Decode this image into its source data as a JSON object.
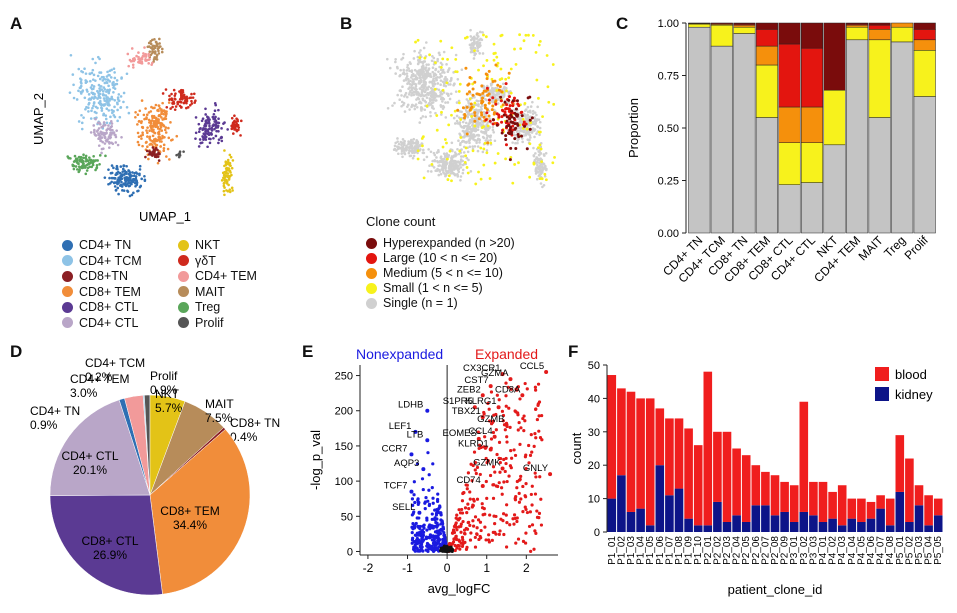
{
  "panel_labels": {
    "a": "A",
    "b": "B",
    "c": "C",
    "d": "D",
    "e": "E",
    "f": "F"
  },
  "panel_a": {
    "xlabel": "UMAP_1",
    "ylabel": "UMAP_2",
    "legend": [
      {
        "label": "CD4+ TN",
        "color": "#2f6fb3"
      },
      {
        "label": "NKT",
        "color": "#e3c317"
      },
      {
        "label": "CD4+ TCM",
        "color": "#8ec3e6"
      },
      {
        "label": "γδT",
        "color": "#cf2a1d"
      },
      {
        "label": "CD8+TN",
        "color": "#8b1f24"
      },
      {
        "label": "CD4+ TEM",
        "color": "#f29a9a"
      },
      {
        "label": "CD8+ TEM",
        "color": "#f18d3a"
      },
      {
        "label": "MAIT",
        "color": "#b78c5a"
      },
      {
        "label": "CD8+ CTL",
        "color": "#5b3a93"
      },
      {
        "label": "Treg",
        "color": "#5aa65a"
      },
      {
        "label": "CD4+ CTL",
        "color": "#b9a6c8"
      },
      {
        "label": "Prolif",
        "color": "#555555"
      }
    ]
  },
  "panel_b": {
    "legend_title": "Clone count",
    "legend": [
      {
        "label": "Hyperexpanded (n >20)",
        "color": "#7a0c0c"
      },
      {
        "label": "Large (10 < n <= 20)",
        "color": "#e3150f"
      },
      {
        "label": "Medium (5 < n <= 10)",
        "color": "#f5900c"
      },
      {
        "label": "Small (1 < n <= 5)",
        "color": "#f7f21c"
      },
      {
        "label": "Single (n = 1)",
        "color": "#d0d0d0"
      }
    ]
  },
  "chart_data": [
    {
      "id": "C",
      "type": "bar",
      "stacked": true,
      "ylabel": "Proportion",
      "ylim": [
        0,
        1
      ],
      "yticks": [
        "0.00",
        "0.25",
        "0.50",
        "0.75",
        "1.00"
      ],
      "categories": [
        "CD4+ TN",
        "CD4+ TCM",
        "CD8+ TN",
        "CD8+ TEM",
        "CD8+ CTL",
        "CD4+ CTL",
        "NKT",
        "CD4+ TEM",
        "MAIT",
        "Treg",
        "Prolif"
      ],
      "series": [
        {
          "name": "Single (n = 1)",
          "color": "#c4c4c4",
          "values": [
            0.98,
            0.89,
            0.95,
            0.55,
            0.23,
            0.24,
            0.42,
            0.92,
            0.55,
            0.91,
            0.65
          ]
        },
        {
          "name": "Small (1 < n <= 5)",
          "color": "#f7f21c",
          "values": [
            0.015,
            0.1,
            0.03,
            0.25,
            0.2,
            0.19,
            0.26,
            0.06,
            0.37,
            0.07,
            0.22
          ]
        },
        {
          "name": "Medium (5 < n <= 10)",
          "color": "#f5900c",
          "values": [
            0.003,
            0.005,
            0.01,
            0.09,
            0.17,
            0.17,
            0.0,
            0.01,
            0.05,
            0.02,
            0.05
          ]
        },
        {
          "name": "Large (10 < n <= 20)",
          "color": "#e3150f",
          "values": [
            0.001,
            0.004,
            0.005,
            0.08,
            0.3,
            0.28,
            0.0,
            0.005,
            0.02,
            0.0,
            0.05
          ]
        },
        {
          "name": "Hyperexpanded (n >20)",
          "color": "#7a0c0c",
          "values": [
            0.001,
            0.001,
            0.005,
            0.03,
            0.1,
            0.12,
            0.32,
            0.005,
            0.01,
            0.0,
            0.03
          ]
        }
      ]
    },
    {
      "id": "D",
      "type": "pie",
      "slices": [
        {
          "label": "CD4+ TN",
          "pct": "0.9%",
          "value": 0.9,
          "color": "#2f6fb3"
        },
        {
          "label": "CD4+ TEM",
          "pct": "3.0%",
          "value": 3.0,
          "color": "#f29a9a"
        },
        {
          "label": "CD4+ TCM",
          "pct": "0.2%",
          "value": 0.2,
          "color": "#8ec3e6"
        },
        {
          "label": "Prolif",
          "pct": "0.9%",
          "value": 0.9,
          "color": "#555555"
        },
        {
          "label": "NKT",
          "pct": "5.7%",
          "value": 5.7,
          "color": "#e3c317"
        },
        {
          "label": "MAIT",
          "pct": "7.5%",
          "value": 7.5,
          "color": "#b78c5a"
        },
        {
          "label": "CD8+ TN",
          "pct": "0.4%",
          "value": 0.4,
          "color": "#8b1f24"
        },
        {
          "label": "CD8+ TEM",
          "pct": "34.4%",
          "value": 34.4,
          "color": "#f18d3a"
        },
        {
          "label": "CD8+ CTL",
          "pct": "26.9%",
          "value": 26.9,
          "color": "#5b3a93"
        },
        {
          "label": "CD4+ CTL",
          "pct": "20.1%",
          "value": 20.1,
          "color": "#b9a6c8"
        }
      ]
    },
    {
      "id": "E",
      "type": "scatter",
      "title_left": "Nonexpanded",
      "title_right": "Expanded",
      "xlabel": "avg_logFC",
      "ylabel": "-log_p_val",
      "xlim": [
        -2.2,
        2.8
      ],
      "ylim": [
        -5,
        265
      ],
      "xticks": [
        "-2",
        "-1",
        "0",
        "1",
        "2"
      ],
      "yticks": [
        "0",
        "50",
        "100",
        "150",
        "200",
        "250"
      ],
      "labeled_points": [
        {
          "gene": "CCL5",
          "x": 2.5,
          "y": 255,
          "side": "right"
        },
        {
          "gene": "CX3CR1",
          "x": 1.4,
          "y": 252,
          "side": "right"
        },
        {
          "gene": "GZMA",
          "x": 1.6,
          "y": 245,
          "side": "right"
        },
        {
          "gene": "CST7",
          "x": 1.1,
          "y": 235,
          "side": "right"
        },
        {
          "gene": "CD8A",
          "x": 1.9,
          "y": 222,
          "side": "right"
        },
        {
          "gene": "ZEB2",
          "x": 0.9,
          "y": 222,
          "side": "right"
        },
        {
          "gene": "S1PR5",
          "x": 0.7,
          "y": 205,
          "side": "right"
        },
        {
          "gene": "KLRG1",
          "x": 1.3,
          "y": 205,
          "side": "right"
        },
        {
          "gene": "TBX21",
          "x": 0.9,
          "y": 191,
          "side": "right"
        },
        {
          "gene": "GZMB",
          "x": 1.5,
          "y": 180,
          "side": "right"
        },
        {
          "gene": "EOMES",
          "x": 0.8,
          "y": 160,
          "side": "right"
        },
        {
          "gene": "CCL4",
          "x": 1.2,
          "y": 163,
          "side": "right"
        },
        {
          "gene": "KLRD1",
          "x": 1.1,
          "y": 145,
          "side": "right"
        },
        {
          "gene": "GZMK",
          "x": 1.4,
          "y": 118,
          "side": "right"
        },
        {
          "gene": "GNLY",
          "x": 2.6,
          "y": 110,
          "side": "right"
        },
        {
          "gene": "CD74",
          "x": 0.9,
          "y": 93,
          "side": "right"
        },
        {
          "gene": "LDHB",
          "x": -0.5,
          "y": 200,
          "side": "left"
        },
        {
          "gene": "LEF1",
          "x": -0.8,
          "y": 170,
          "side": "left"
        },
        {
          "gene": "LTB",
          "x": -0.5,
          "y": 158,
          "side": "left"
        },
        {
          "gene": "CCR7",
          "x": -0.9,
          "y": 138,
          "side": "left"
        },
        {
          "gene": "AQP3",
          "x": -0.6,
          "y": 117,
          "side": "left"
        },
        {
          "gene": "TCF7",
          "x": -0.9,
          "y": 85,
          "side": "left"
        },
        {
          "gene": "SELL",
          "x": -0.7,
          "y": 55,
          "side": "left"
        }
      ]
    },
    {
      "id": "F",
      "type": "bar",
      "stacked": true,
      "xlabel": "patient_clone_id",
      "ylabel": "count",
      "ylim": [
        0,
        50
      ],
      "yticks": [
        "0",
        "10",
        "20",
        "30",
        "40",
        "50"
      ],
      "legend": [
        {
          "name": "blood",
          "color": "#f01e1e"
        },
        {
          "name": "kidney",
          "color": "#0d1488"
        }
      ],
      "categories": [
        "P1_01",
        "P1_02",
        "P1_03",
        "P1_04",
        "P1_05",
        "P1_06",
        "P1_07",
        "P1_08",
        "P1_09",
        "P1_10",
        "P2_01",
        "P2_02",
        "P2_03",
        "P2_04",
        "P2_05",
        "P2_06",
        "P2_07",
        "P2_08",
        "P2_09",
        "P3_01",
        "P3_02",
        "P3_03",
        "P4_01",
        "P4_02",
        "P4_03",
        "P4_04",
        "P4_05",
        "P4_06",
        "P4_07",
        "P4_08",
        "P5_01",
        "P5_02",
        "P5_03",
        "P5_04",
        "P5_05"
      ],
      "series": [
        {
          "name": "kidney",
          "values": [
            10,
            17,
            6,
            7,
            2,
            20,
            11,
            13,
            4,
            2,
            2,
            9,
            3,
            5,
            3,
            8,
            8,
            5,
            6,
            3,
            6,
            5,
            3,
            4,
            2,
            4,
            3,
            4,
            7,
            2,
            12,
            3,
            8,
            2,
            5
          ]
        },
        {
          "name": "blood",
          "values": [
            37,
            26,
            36,
            33,
            38,
            17,
            23,
            21,
            27,
            24,
            46,
            21,
            27,
            20,
            20,
            12,
            10,
            12,
            9,
            11,
            33,
            10,
            12,
            8,
            12,
            6,
            7,
            5,
            4,
            8,
            17,
            19,
            6,
            9,
            5
          ]
        }
      ]
    }
  ]
}
